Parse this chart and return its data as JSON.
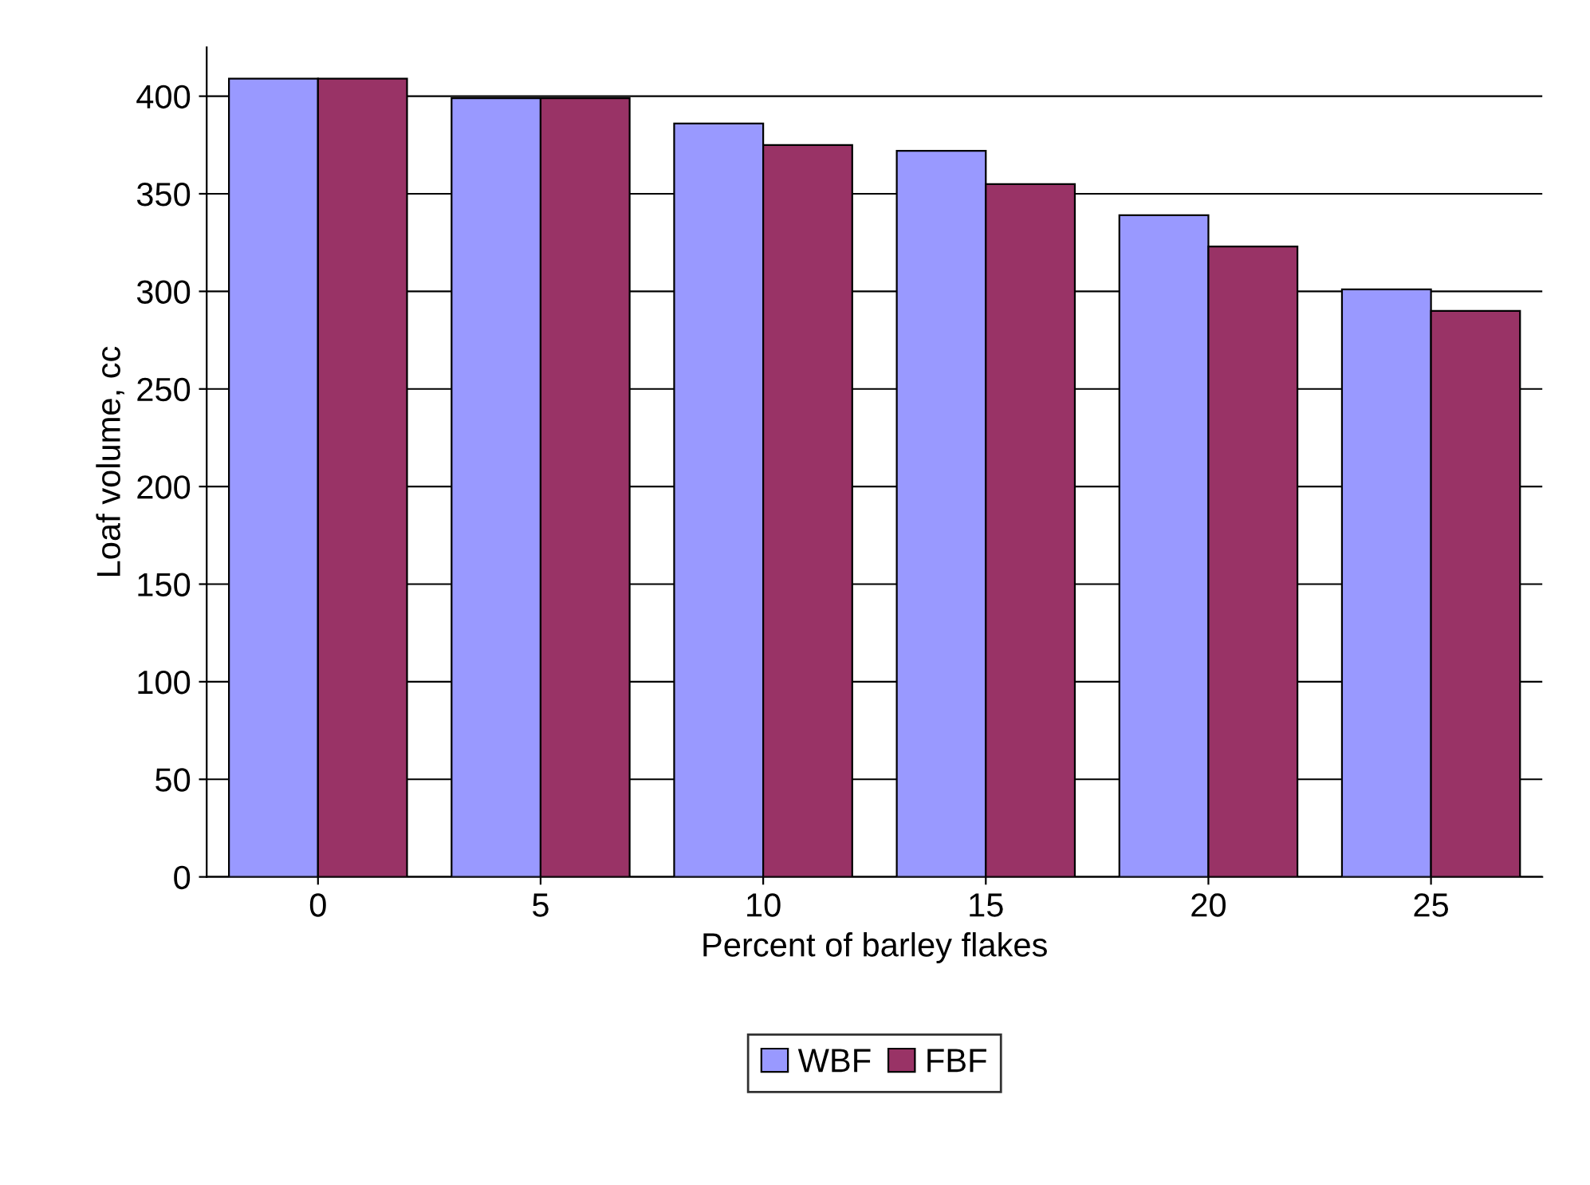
{
  "chart_data": {
    "type": "bar",
    "xlabel": "Percent of barley flakes",
    "ylabel": "Loaf volume, cc",
    "categories": [
      "0",
      "5",
      "10",
      "15",
      "20",
      "25"
    ],
    "series": [
      {
        "name": "WBF",
        "color": "#9999ff",
        "values": [
          409,
          399,
          386,
          372,
          339,
          301
        ]
      },
      {
        "name": "FBF",
        "color": "#993366",
        "values": [
          409,
          399,
          375,
          355,
          323,
          290
        ]
      }
    ],
    "ylim": [
      0,
      425
    ],
    "yticks": [
      0,
      50,
      100,
      150,
      200,
      250,
      300,
      350,
      400
    ],
    "grid": "y",
    "legend": "bottom"
  }
}
